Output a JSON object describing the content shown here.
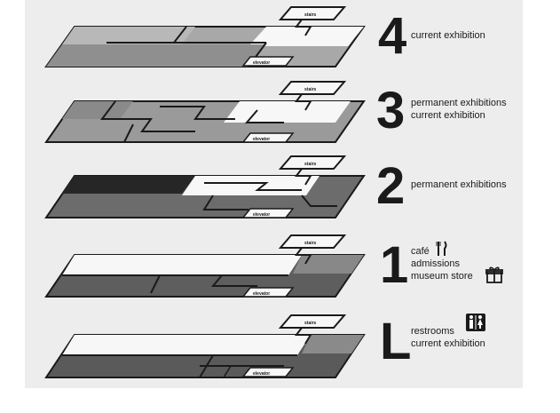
{
  "floors": [
    {
      "id": "4",
      "number": "4",
      "lines": [
        "current exhibition"
      ]
    },
    {
      "id": "3",
      "number": "3",
      "lines": [
        "permanent exhibitions",
        "current exhibition"
      ]
    },
    {
      "id": "2",
      "number": "2",
      "lines": [
        "permanent exhibitions"
      ]
    },
    {
      "id": "1",
      "number": "1",
      "lines": [
        "café",
        "admissions",
        "museum store"
      ]
    },
    {
      "id": "L",
      "number": "L",
      "lines": [
        "restrooms",
        "current exhibition"
      ]
    }
  ],
  "plan_labels": {
    "stairs": "stairs",
    "elevator": "elevator"
  },
  "icons": {
    "cafe": "fork-knife-icon",
    "store": "gift-icon",
    "restrooms": "restroom-icon"
  },
  "colors": {
    "background": "#ededed",
    "ink": "#1a1a1a",
    "white_zone": "#f7f7f7",
    "light_zone": "#9a9a9a",
    "mid_zone": "#7a7a7a",
    "dark_zone": "#5c5c5c",
    "darkest_zone": "#262626"
  }
}
